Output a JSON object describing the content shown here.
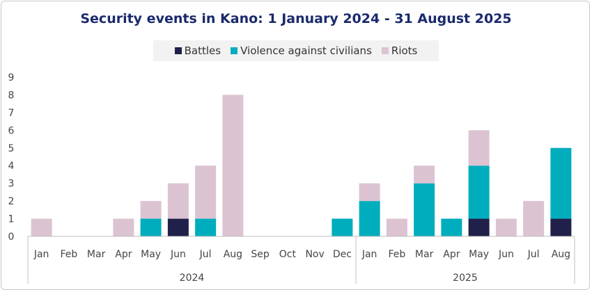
{
  "chart_data": {
    "type": "bar",
    "stacked": true,
    "title": "Security events in Kano: 1 January 2024 - 31 August 2025",
    "xlabel": "",
    "ylabel": "",
    "ylim": [
      0,
      9
    ],
    "yticks": [
      "0",
      "1",
      "2",
      "3",
      "4",
      "5",
      "6",
      "7",
      "8",
      "9"
    ],
    "legend_position": "top",
    "categories": [
      "Jan",
      "Feb",
      "Mar",
      "Apr",
      "May",
      "Jun",
      "Jul",
      "Aug",
      "Sep",
      "Oct",
      "Nov",
      "Dec",
      "Jan",
      "Feb",
      "Mar",
      "Apr",
      "May",
      "Jun",
      "Jul",
      "Aug"
    ],
    "groups": [
      {
        "label": "2024",
        "count": 12
      },
      {
        "label": "2025",
        "count": 8
      }
    ],
    "series": [
      {
        "name": "Battles",
        "color": "#20204a",
        "values": [
          0,
          0,
          0,
          0,
          0,
          1,
          0,
          0,
          0,
          0,
          0,
          0,
          0,
          0,
          0,
          0,
          1,
          0,
          0,
          1
        ]
      },
      {
        "name": "Violence against civilians",
        "color": "#00adbd",
        "values": [
          0,
          0,
          0,
          0,
          1,
          0,
          1,
          0,
          0,
          0,
          0,
          1,
          2,
          0,
          3,
          1,
          3,
          0,
          0,
          4
        ]
      },
      {
        "name": "Riots",
        "color": "#dcc3d2",
        "values": [
          1,
          0,
          0,
          1,
          1,
          2,
          3,
          8,
          0,
          0,
          0,
          0,
          1,
          1,
          1,
          0,
          2,
          1,
          2,
          0
        ]
      }
    ]
  }
}
